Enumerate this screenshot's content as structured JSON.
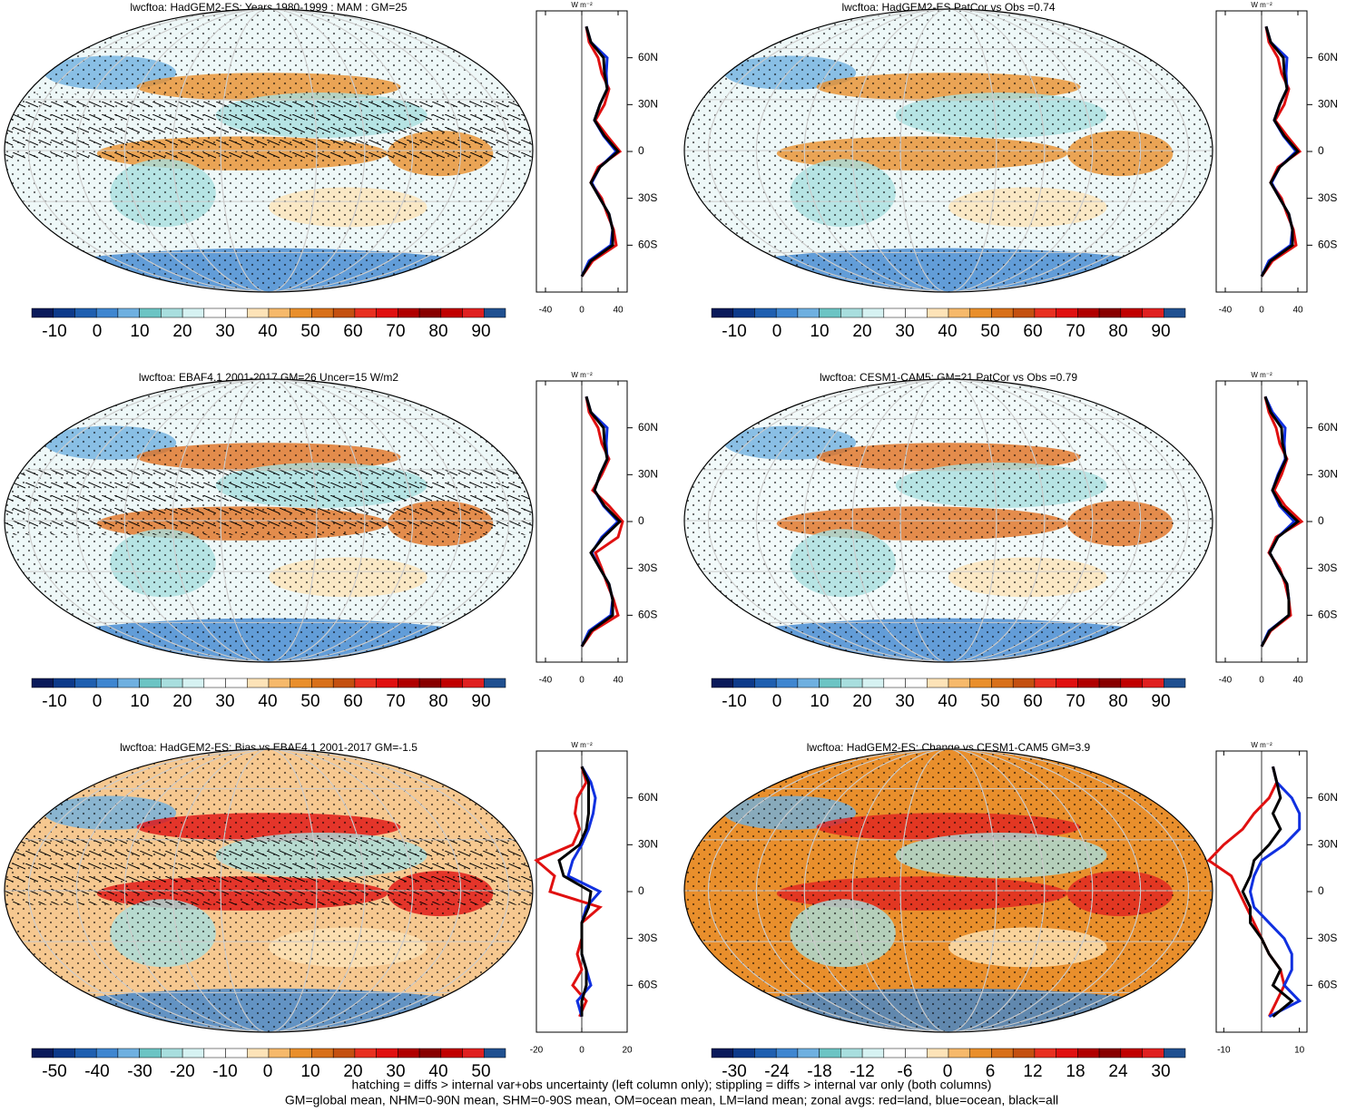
{
  "panels": [
    {
      "title": "lwcftoa: HadGEM2-ES: Years 1980-1999 : MAM : GM=25",
      "background": "#eef8f8",
      "accent": "#e98f2c",
      "colorbar": [
        -10,
        0,
        10,
        20,
        30,
        40,
        50,
        60,
        70,
        80,
        90
      ],
      "zonal": {
        "unit": "W m⁻²",
        "xlim": [
          -50,
          50
        ],
        "xticks": [
          -40,
          0,
          40
        ],
        "series": [
          {
            "name": "land",
            "color": "#e01010",
            "values": [
              5,
              8,
              18,
              22,
              30,
              25,
              15,
              28,
              42,
              18,
              10,
              22,
              28,
              35,
              38,
              12,
              0
            ]
          },
          {
            "name": "ocean",
            "color": "#1030e0",
            "values": [
              5,
              10,
              28,
              27,
              28,
              20,
              14,
              24,
              38,
              20,
              11,
              20,
              30,
              34,
              32,
              8,
              0
            ]
          },
          {
            "name": "all",
            "color": "#000000",
            "values": [
              5,
              10,
              24,
              25,
              28,
              20,
              14,
              25,
              40,
              20,
              10,
              20,
              30,
              34,
              34,
              10,
              0
            ]
          }
        ]
      }
    },
    {
      "title": "lwcftoa: HadGEM2-ES PatCor vs Obs =0.74",
      "background": "#eef8f8",
      "accent": "#e98f2c",
      "colorbar": [
        -10,
        0,
        10,
        20,
        30,
        40,
        50,
        60,
        70,
        80,
        90
      ],
      "zonal": {
        "unit": "W m⁻²",
        "xlim": [
          -50,
          50
        ],
        "xticks": [
          -40,
          0,
          40
        ],
        "series": [
          {
            "name": "land",
            "color": "#e01010",
            "values": [
              5,
              8,
              18,
              22,
              30,
              25,
              15,
              28,
              42,
              18,
              10,
              22,
              28,
              35,
              38,
              12,
              0
            ]
          },
          {
            "name": "ocean",
            "color": "#1030e0",
            "values": [
              5,
              10,
              28,
              27,
              28,
              20,
              14,
              24,
              38,
              20,
              11,
              20,
              30,
              34,
              32,
              8,
              0
            ]
          },
          {
            "name": "all",
            "color": "#000000",
            "values": [
              5,
              10,
              24,
              25,
              28,
              20,
              14,
              25,
              40,
              20,
              10,
              20,
              30,
              34,
              34,
              10,
              0
            ]
          }
        ]
      }
    },
    {
      "title": "lwcftoa: EBAF4.1 2001-2017 GM=26 Uncer=15 W/m2",
      "background": "#eef8f8",
      "accent": "#e07020",
      "colorbar": [
        -10,
        0,
        10,
        20,
        30,
        40,
        50,
        60,
        70,
        80,
        90
      ],
      "zonal": {
        "unit": "W m⁻²",
        "xlim": [
          -50,
          50
        ],
        "xticks": [
          -40,
          0,
          40
        ],
        "series": [
          {
            "name": "land",
            "color": "#e01010",
            "values": [
              5,
              8,
              18,
              22,
              30,
              22,
              12,
              30,
              45,
              40,
              15,
              22,
              28,
              35,
              40,
              12,
              0
            ]
          },
          {
            "name": "ocean",
            "color": "#1030e0",
            "values": [
              5,
              10,
              28,
              27,
              28,
              20,
              14,
              24,
              40,
              22,
              11,
              20,
              30,
              34,
              32,
              8,
              0
            ]
          },
          {
            "name": "all",
            "color": "#000000",
            "values": [
              5,
              10,
              24,
              25,
              28,
              20,
              14,
              25,
              42,
              24,
              10,
              20,
              30,
              34,
              34,
              10,
              0
            ]
          }
        ]
      }
    },
    {
      "title": "lwcftoa: CESM1-CAM5: GM=21 PatCor vs Obs =0.79",
      "background": "#f2fafa",
      "accent": "#e07020",
      "colorbar": [
        -10,
        0,
        10,
        20,
        30,
        40,
        50,
        60,
        70,
        80,
        90
      ],
      "zonal": {
        "unit": "W m⁻²",
        "xlim": [
          -50,
          50
        ],
        "xticks": [
          -40,
          0,
          40
        ],
        "series": [
          {
            "name": "land",
            "color": "#e01010",
            "values": [
              4,
              8,
              16,
              20,
              28,
              22,
              14,
              26,
              44,
              16,
              8,
              20,
              26,
              30,
              32,
              10,
              0
            ]
          },
          {
            "name": "ocean",
            "color": "#1030e0",
            "values": [
              4,
              12,
              26,
              25,
              26,
              18,
              12,
              20,
              36,
              18,
              9,
              18,
              28,
              30,
              30,
              8,
              0
            ]
          },
          {
            "name": "all",
            "color": "#000000",
            "values": [
              4,
              10,
              22,
              23,
              27,
              19,
              12,
              22,
              40,
              18,
              9,
              18,
              28,
              30,
              30,
              9,
              0
            ]
          }
        ]
      }
    },
    {
      "title": "lwcftoa: HadGEM2-ES: Bias vs EBAF4.1 2001-2017 GM=-1.5",
      "background": "#f6c890",
      "accent": "#e01010",
      "colorbar": [
        -50,
        -40,
        -30,
        -20,
        -10,
        0,
        10,
        20,
        30,
        40,
        50
      ],
      "zonal": {
        "unit": "W m⁻²",
        "xlim": [
          -20,
          20
        ],
        "xticks": [
          -20,
          0,
          20
        ],
        "series": [
          {
            "name": "land",
            "color": "#e01010",
            "values": [
              0,
              2,
              -2,
              -3,
              -1,
              -4,
              -20,
              -12,
              -14,
              8,
              0,
              0,
              -2,
              0,
              -4,
              2,
              -1
            ]
          },
          {
            "name": "ocean",
            "color": "#1030e0",
            "values": [
              0,
              4,
              6,
              5,
              3,
              0,
              -4,
              -6,
              8,
              2,
              0,
              0,
              0,
              2,
              4,
              -2,
              0
            ]
          },
          {
            "name": "all",
            "color": "#000000",
            "values": [
              0,
              3,
              3,
              3,
              2,
              -1,
              -10,
              -8,
              4,
              3,
              0,
              0,
              0,
              2,
              2,
              0,
              0
            ]
          }
        ]
      }
    },
    {
      "title": "lwcftoa: HadGEM2-ES: Change vs CESM1-CAM5 GM=3.9",
      "background": "#e98f2c",
      "accent": "#e02020",
      "colorbar": [
        -30,
        -24,
        -18,
        -12,
        -6,
        0,
        6,
        12,
        18,
        24,
        30
      ],
      "zonal": {
        "unit": "W m⁻²",
        "xlim": [
          -12,
          12
        ],
        "xticks": [
          -10,
          10
        ],
        "series": [
          {
            "name": "land",
            "color": "#e01010",
            "values": [
              3,
              4,
              2,
              -2,
              -5,
              -10,
              -14,
              -8,
              -6,
              -4,
              -2,
              0,
              2,
              5,
              6,
              4,
              2
            ]
          },
          {
            "name": "ocean",
            "color": "#1030e0",
            "values": [
              3,
              4,
              8,
              10,
              10,
              6,
              0,
              -2,
              -3,
              -2,
              2,
              6,
              8,
              8,
              6,
              10,
              2
            ]
          },
          {
            "name": "all",
            "color": "#000000",
            "values": [
              3,
              4,
              5,
              3,
              5,
              2,
              -2,
              -3,
              -5,
              -3,
              -3,
              0,
              2,
              5,
              3,
              8,
              3
            ]
          }
        ]
      }
    }
  ],
  "latitudes": [
    80,
    70,
    60,
    50,
    40,
    30,
    20,
    10,
    0,
    -10,
    -20,
    -30,
    -40,
    -50,
    -60,
    -70,
    -80
  ],
  "ylim": [
    -90,
    90
  ],
  "yticks": [
    {
      "value": 60,
      "label": "60N"
    },
    {
      "value": 30,
      "label": "30N"
    },
    0,
    {
      "value": -30,
      "label": "30S"
    },
    {
      "value": -60,
      "label": "60S"
    }
  ],
  "colorbar_colors": [
    "#0a1a5a",
    "#0d3a8a",
    "#1f5fb0",
    "#3f86d0",
    "#6fb0e0",
    "#6cc4c4",
    "#a8dede",
    "#d6f2f2",
    "#ffffff",
    "#ffffff",
    "#fde3b8",
    "#f6b96b",
    "#e98f2c",
    "#d8701a",
    "#c45010",
    "#e83020",
    "#e01010",
    "#b00000",
    "#880000",
    "#c00000",
    "#e02020",
    "#205090"
  ],
  "footer": [
    "hatching = diffs > internal var+obs uncertainty (left column only); stippling = diffs > internal var only (both columns)",
    "GM=global mean, NHM=0-90N mean, SHM=0-90S mean, OM=ocean mean, LM=land mean; zonal avgs: red=land, blue=ocean, black=all"
  ]
}
